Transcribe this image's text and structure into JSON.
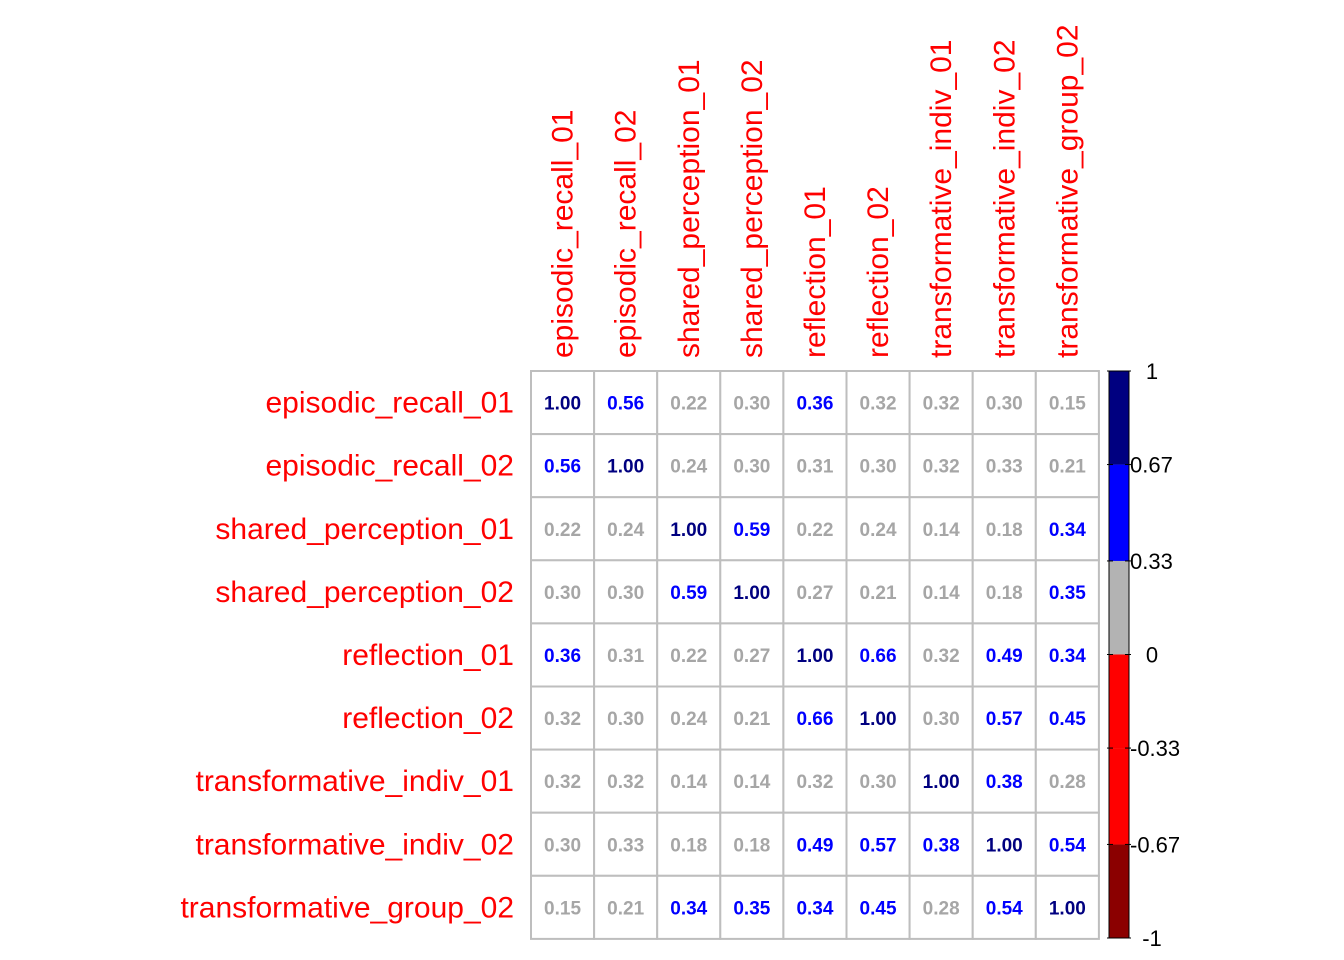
{
  "chart_data": {
    "type": "heatmap",
    "variables": [
      "episodic_recall_01",
      "episodic_recall_02",
      "shared_perception_01",
      "shared_perception_02",
      "reflection_01",
      "reflection_02",
      "transformative_indiv_01",
      "transformative_indiv_02",
      "transformative_group_02"
    ],
    "matrix": [
      [
        1.0,
        0.56,
        0.22,
        0.3,
        0.36,
        0.32,
        0.32,
        0.3,
        0.15
      ],
      [
        0.56,
        1.0,
        0.24,
        0.3,
        0.31,
        0.3,
        0.32,
        0.33,
        0.21
      ],
      [
        0.22,
        0.24,
        1.0,
        0.59,
        0.22,
        0.24,
        0.14,
        0.18,
        0.34
      ],
      [
        0.3,
        0.3,
        0.59,
        1.0,
        0.27,
        0.21,
        0.14,
        0.18,
        0.35
      ],
      [
        0.36,
        0.31,
        0.22,
        0.27,
        1.0,
        0.66,
        0.32,
        0.49,
        0.34
      ],
      [
        0.32,
        0.3,
        0.24,
        0.21,
        0.66,
        1.0,
        0.3,
        0.57,
        0.45
      ],
      [
        0.32,
        0.32,
        0.14,
        0.14,
        0.32,
        0.3,
        1.0,
        0.38,
        0.28
      ],
      [
        0.3,
        0.33,
        0.18,
        0.18,
        0.49,
        0.57,
        0.38,
        1.0,
        0.54
      ],
      [
        0.15,
        0.21,
        0.34,
        0.35,
        0.34,
        0.45,
        0.28,
        0.54,
        1.0
      ]
    ],
    "value_format_decimals": 2,
    "label_color": "#ff0000",
    "grid_color": "#bebebe",
    "color_scale": {
      "range": [
        -1,
        1
      ],
      "bins": [
        {
          "from": -1.0,
          "to": -0.67,
          "color": "#8b0000"
        },
        {
          "from": -0.67,
          "to": -0.33,
          "color": "#ff0000"
        },
        {
          "from": -0.33,
          "to": 0.0,
          "color": "#ff0000"
        },
        {
          "from": 0.0,
          "to": 0.33,
          "color": "#b3b3b3"
        },
        {
          "from": 0.33,
          "to": 0.67,
          "color": "#0000ff"
        },
        {
          "from": 0.67,
          "to": 1.0,
          "color": "#000080"
        }
      ],
      "text_colors": {
        "low": "#a6a6a6",
        "mid": "#0000ff",
        "high": "#000080"
      },
      "ticks": [
        {
          "value": 1,
          "label": "1"
        },
        {
          "value": 0.67,
          "label": "0.67"
        },
        {
          "value": 0.33,
          "label": "0.33"
        },
        {
          "value": 0,
          "label": "0"
        },
        {
          "value": -0.33,
          "label": "-0.33"
        },
        {
          "value": -0.67,
          "label": "-0.67"
        },
        {
          "value": -1,
          "label": "-1"
        }
      ]
    }
  }
}
